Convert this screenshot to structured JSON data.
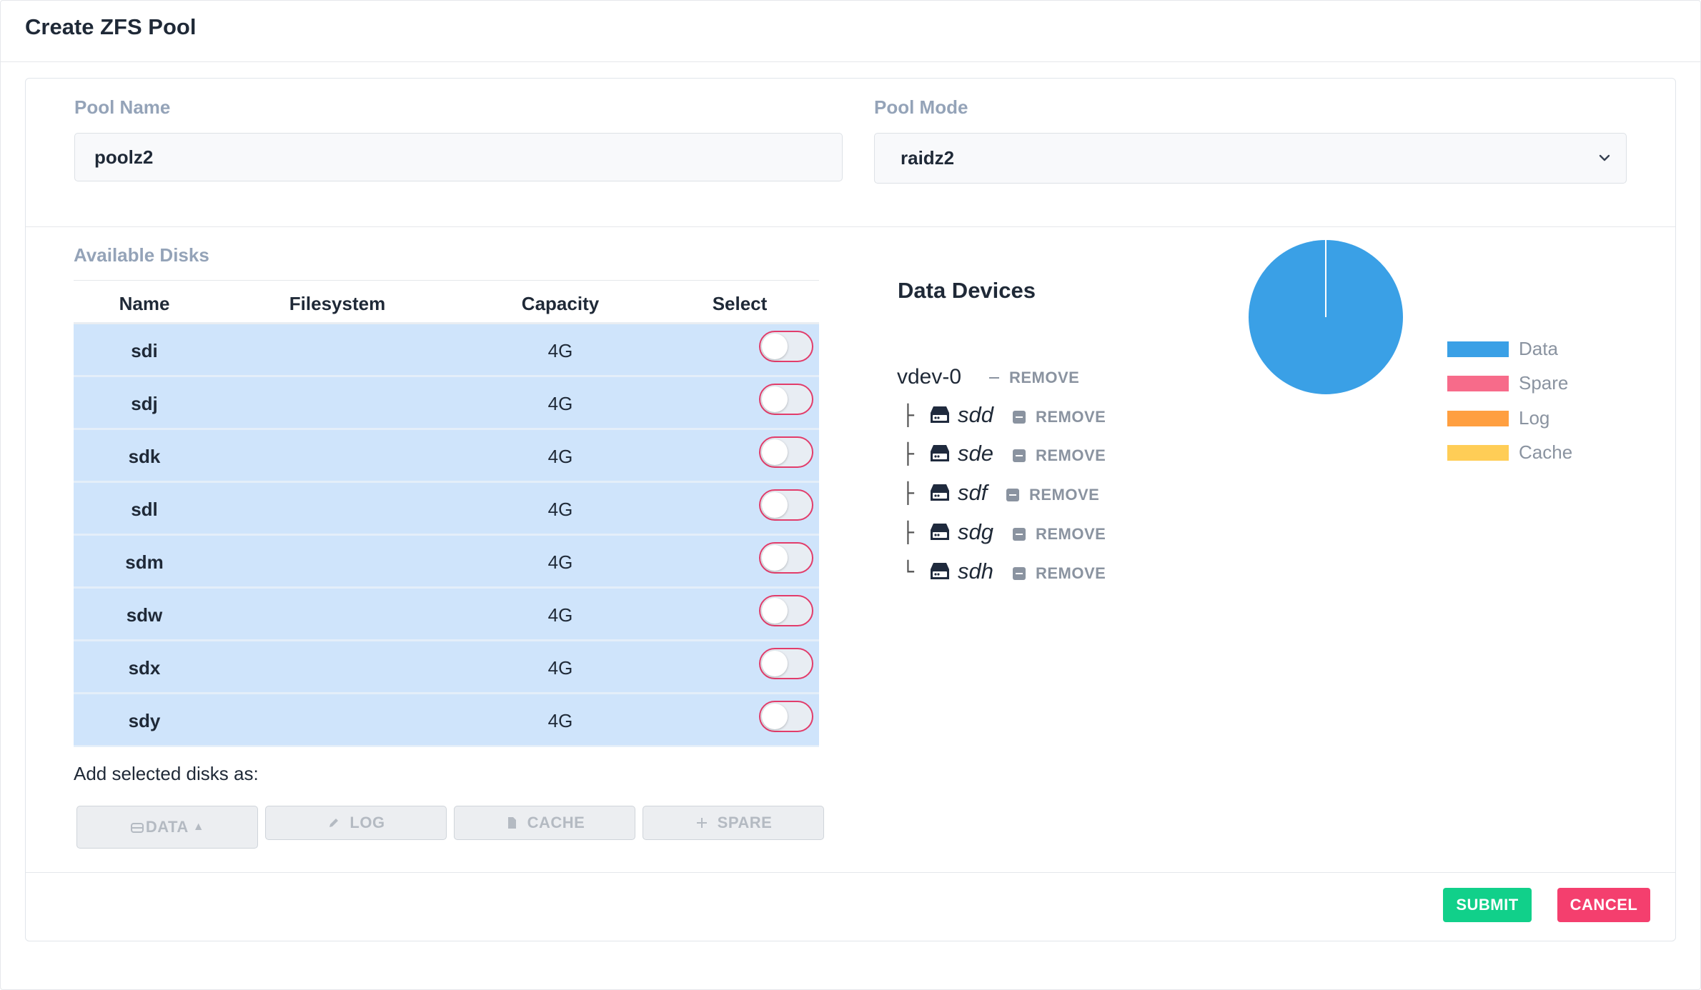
{
  "dialog": {
    "title": "Create ZFS Pool"
  },
  "form": {
    "pool_name": {
      "label": "Pool Name",
      "value": "poolz2"
    },
    "pool_mode": {
      "label": "Pool Mode",
      "value": "raidz2"
    }
  },
  "available_disks": {
    "title": "Available Disks",
    "columns": [
      "Name",
      "Filesystem",
      "Capacity",
      "Select"
    ],
    "rows": [
      {
        "name": "sdi",
        "filesystem": "",
        "capacity": "4G",
        "selected": false
      },
      {
        "name": "sdj",
        "filesystem": "",
        "capacity": "4G",
        "selected": false
      },
      {
        "name": "sdk",
        "filesystem": "",
        "capacity": "4G",
        "selected": false
      },
      {
        "name": "sdl",
        "filesystem": "",
        "capacity": "4G",
        "selected": false
      },
      {
        "name": "sdm",
        "filesystem": "",
        "capacity": "4G",
        "selected": false
      },
      {
        "name": "sdw",
        "filesystem": "",
        "capacity": "4G",
        "selected": false
      },
      {
        "name": "sdx",
        "filesystem": "",
        "capacity": "4G",
        "selected": false
      },
      {
        "name": "sdy",
        "filesystem": "",
        "capacity": "4G",
        "selected": false
      }
    ]
  },
  "add_as": {
    "label": "Add selected disks as:",
    "buttons": [
      {
        "label": "DATA",
        "icon": "disk-icon",
        "caret": "▲"
      },
      {
        "label": "LOG",
        "icon": "pencil-icon"
      },
      {
        "label": "CACHE",
        "icon": "file-icon"
      },
      {
        "label": "SPARE",
        "icon": "plus-icon"
      }
    ]
  },
  "data_devices": {
    "title": "Data Devices",
    "vdev": {
      "name": "vdev-0",
      "remove_label": "REMOVE"
    },
    "disks": [
      {
        "branch": "├",
        "name": "sdd",
        "remove_label": "REMOVE"
      },
      {
        "branch": "├",
        "name": "sde",
        "remove_label": "REMOVE"
      },
      {
        "branch": "├",
        "name": "sdf",
        "remove_label": "REMOVE"
      },
      {
        "branch": "├",
        "name": "sdg",
        "remove_label": "REMOVE"
      },
      {
        "branch": "└",
        "name": "sdh",
        "remove_label": "REMOVE"
      }
    ]
  },
  "legend": [
    {
      "label": "Data",
      "color": "#3aa0e6"
    },
    {
      "label": "Spare",
      "color": "#f76b8a"
    },
    {
      "label": "Log",
      "color": "#ff9f40"
    },
    {
      "label": "Cache",
      "color": "#ffcd56"
    }
  ],
  "chart_data": {
    "type": "pie",
    "title": "",
    "slices": [
      {
        "label": "Data",
        "value": 100,
        "color": "#3aa0e6"
      },
      {
        "label": "Spare",
        "value": 0,
        "color": "#f76b8a"
      },
      {
        "label": "Log",
        "value": 0,
        "color": "#ff9f40"
      },
      {
        "label": "Cache",
        "value": 0,
        "color": "#ffcd56"
      }
    ],
    "legend_position": "right"
  },
  "actions": {
    "submit": {
      "label": "SUBMIT",
      "color": "#11d08a"
    },
    "cancel": {
      "label": "CANCEL",
      "color": "#f43f6e"
    }
  }
}
